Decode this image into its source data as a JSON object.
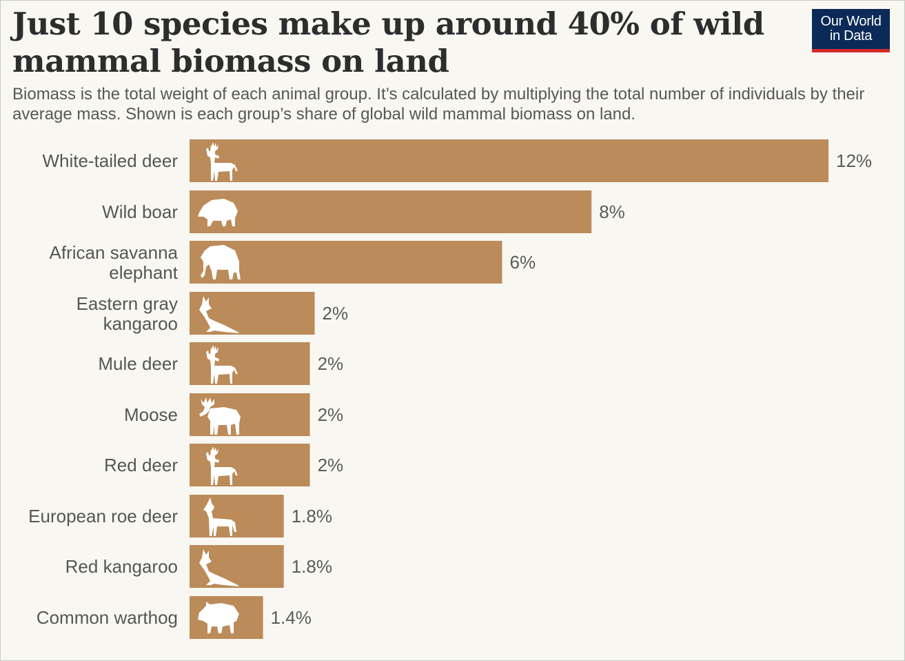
{
  "header": {
    "title": "Just 10 species make up around 40% of wild mammal biomass on land",
    "subtitle": "Biomass is the total weight of each animal group. It’s calculated by multiplying the total number of individuals by their average mass. Shown is each group’s share of global wild mammal biomass on land."
  },
  "logo": {
    "line1": "Our World",
    "line2": "in Data"
  },
  "colors": {
    "bar": "#bb8b59",
    "logo_bg": "#0b2a57",
    "logo_accent": "#d42b2b",
    "background": "#f8f7f2"
  },
  "chart_data": {
    "type": "bar",
    "orientation": "horizontal",
    "title": "Just 10 species make up around 40% of wild mammal biomass on land",
    "xlabel": "",
    "ylabel": "",
    "xlim": [
      0,
      12
    ],
    "categories": [
      "White-tailed deer",
      "Wild boar",
      "African savanna elephant",
      "Eastern gray kangaroo",
      "Mule deer",
      "Moose",
      "Red deer",
      "European roe deer",
      "Red kangaroo",
      "Common warthog"
    ],
    "values": [
      12,
      7.55,
      5.87,
      2.35,
      2.26,
      2.26,
      2.26,
      1.77,
      1.77,
      1.38
    ],
    "value_labels": [
      "12%",
      "8%",
      "6%",
      "2%",
      "2%",
      "2%",
      "2%",
      "1.8%",
      "1.8%",
      "1.4%"
    ],
    "icons": [
      "deer-icon",
      "boar-icon",
      "elephant-icon",
      "kangaroo-icon",
      "deer-icon",
      "moose-icon",
      "deer-icon",
      "roe-deer-icon",
      "kangaroo-icon",
      "warthog-icon"
    ]
  }
}
